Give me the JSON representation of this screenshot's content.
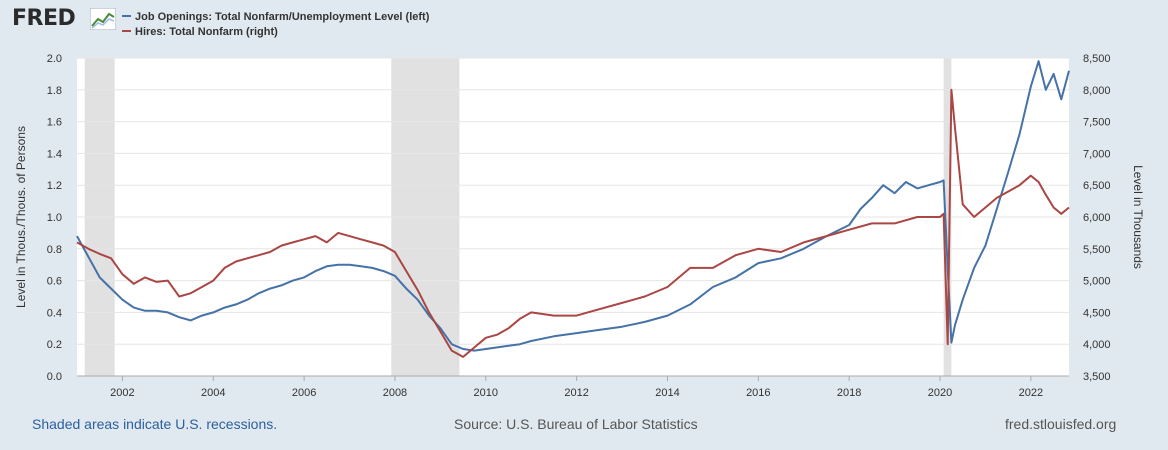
{
  "logo": {
    "text": "FRED"
  },
  "colors": {
    "series_left": "#4572a7",
    "series_right": "#aa4643",
    "recession": "#e1e1e1",
    "background": "#e1e9f0",
    "plot_bg": "#ffffff",
    "link": "#2c5f9e"
  },
  "icons": {
    "logo_graph": "line-chart-icon"
  },
  "footer": {
    "note": "Shaded areas indicate U.S. recessions.",
    "source": "Source: U.S. Bureau of Labor Statistics",
    "site": "fred.stlouisfed.org"
  },
  "chart_data": {
    "type": "line",
    "xlim": [
      2001.0,
      2022.84
    ],
    "x_ticks": [
      2002,
      2004,
      2006,
      2008,
      2010,
      2012,
      2014,
      2016,
      2018,
      2020,
      2022
    ],
    "x_tick_labels": [
      "2002",
      "2004",
      "2006",
      "2008",
      "2010",
      "2012",
      "2014",
      "2016",
      "2018",
      "2020",
      "2022"
    ],
    "y_left": {
      "label": "Level in Thous./Thous. of Persons",
      "lim": [
        0.0,
        2.0
      ],
      "ticks": [
        0.0,
        0.2,
        0.4,
        0.6,
        0.8,
        1.0,
        1.2,
        1.4,
        1.6,
        1.8,
        2.0
      ],
      "tick_labels": [
        "0.0",
        "0.2",
        "0.4",
        "0.6",
        "0.8",
        "1.0",
        "1.2",
        "1.4",
        "1.6",
        "1.8",
        "2.0"
      ]
    },
    "y_right": {
      "label": "Level in Thousands",
      "lim": [
        3500,
        8500
      ],
      "ticks": [
        3500,
        4000,
        4500,
        5000,
        5500,
        6000,
        6500,
        7000,
        7500,
        8000,
        8500
      ],
      "tick_labels": [
        "3,500",
        "4,000",
        "4,500",
        "5,000",
        "5,500",
        "6,000",
        "6,500",
        "7,000",
        "7,500",
        "8,000",
        "8,500"
      ]
    },
    "recessions": [
      [
        2001.17,
        2001.83
      ],
      [
        2007.92,
        2009.42
      ],
      [
        2020.08,
        2020.25
      ]
    ],
    "grid": "horizontal",
    "legend_placement": "top-left",
    "series": [
      {
        "name": "Job Openings: Total Nonfarm/Unemployment Level (left)",
        "axis": "left",
        "color": "#4572a7",
        "x": [
          2001.0,
          2001.25,
          2001.5,
          2001.75,
          2002.0,
          2002.25,
          2002.5,
          2002.75,
          2003.0,
          2003.25,
          2003.5,
          2003.75,
          2004.0,
          2004.25,
          2004.5,
          2004.75,
          2005.0,
          2005.25,
          2005.5,
          2005.75,
          2006.0,
          2006.25,
          2006.5,
          2006.75,
          2007.0,
          2007.25,
          2007.5,
          2007.75,
          2008.0,
          2008.25,
          2008.5,
          2008.75,
          2009.0,
          2009.25,
          2009.5,
          2009.75,
          2010.0,
          2010.25,
          2010.5,
          2010.75,
          2011.0,
          2011.5,
          2012.0,
          2012.5,
          2013.0,
          2013.5,
          2014.0,
          2014.5,
          2015.0,
          2015.5,
          2016.0,
          2016.5,
          2017.0,
          2017.5,
          2018.0,
          2018.25,
          2018.5,
          2018.75,
          2019.0,
          2019.25,
          2019.5,
          2019.75,
          2020.0,
          2020.08,
          2020.17,
          2020.25,
          2020.33,
          2020.5,
          2020.75,
          2021.0,
          2021.25,
          2021.5,
          2021.75,
          2022.0,
          2022.17,
          2022.33,
          2022.5,
          2022.67,
          2022.84
        ],
        "values": [
          0.88,
          0.75,
          0.62,
          0.55,
          0.48,
          0.43,
          0.41,
          0.41,
          0.4,
          0.37,
          0.35,
          0.38,
          0.4,
          0.43,
          0.45,
          0.48,
          0.52,
          0.55,
          0.57,
          0.6,
          0.62,
          0.66,
          0.69,
          0.7,
          0.7,
          0.69,
          0.68,
          0.66,
          0.63,
          0.55,
          0.48,
          0.38,
          0.3,
          0.2,
          0.17,
          0.16,
          0.17,
          0.18,
          0.19,
          0.2,
          0.22,
          0.25,
          0.27,
          0.29,
          0.31,
          0.34,
          0.38,
          0.45,
          0.56,
          0.62,
          0.71,
          0.74,
          0.8,
          0.88,
          0.95,
          1.05,
          1.12,
          1.2,
          1.15,
          1.22,
          1.18,
          1.2,
          1.22,
          1.23,
          0.68,
          0.21,
          0.32,
          0.48,
          0.68,
          0.82,
          1.05,
          1.28,
          1.52,
          1.82,
          1.98,
          1.8,
          1.9,
          1.74,
          1.92
        ]
      },
      {
        "name": "Hires: Total Nonfarm (right)",
        "axis": "right",
        "color": "#aa4643",
        "x": [
          2001.0,
          2001.25,
          2001.5,
          2001.75,
          2002.0,
          2002.25,
          2002.5,
          2002.75,
          2003.0,
          2003.25,
          2003.5,
          2003.75,
          2004.0,
          2004.25,
          2004.5,
          2004.75,
          2005.0,
          2005.25,
          2005.5,
          2005.75,
          2006.0,
          2006.25,
          2006.5,
          2006.75,
          2007.0,
          2007.25,
          2007.5,
          2007.75,
          2008.0,
          2008.25,
          2008.5,
          2008.75,
          2009.0,
          2009.25,
          2009.5,
          2009.75,
          2010.0,
          2010.25,
          2010.5,
          2010.75,
          2011.0,
          2011.5,
          2012.0,
          2012.5,
          2013.0,
          2013.5,
          2014.0,
          2014.5,
          2015.0,
          2015.5,
          2016.0,
          2016.5,
          2017.0,
          2017.5,
          2018.0,
          2018.5,
          2019.0,
          2019.5,
          2020.0,
          2020.08,
          2020.17,
          2020.25,
          2020.33,
          2020.5,
          2020.75,
          2021.0,
          2021.25,
          2021.5,
          2021.75,
          2022.0,
          2022.17,
          2022.33,
          2022.5,
          2022.67,
          2022.84
        ],
        "values": [
          5600,
          5500,
          5420,
          5350,
          5100,
          4950,
          5050,
          4980,
          5000,
          4750,
          4800,
          4900,
          5000,
          5200,
          5300,
          5350,
          5400,
          5450,
          5550,
          5600,
          5650,
          5700,
          5600,
          5750,
          5700,
          5650,
          5600,
          5550,
          5450,
          5150,
          4850,
          4500,
          4200,
          3900,
          3800,
          3950,
          4100,
          4150,
          4250,
          4400,
          4500,
          4450,
          4450,
          4550,
          4650,
          4750,
          4900,
          5200,
          5200,
          5400,
          5500,
          5450,
          5600,
          5700,
          5800,
          5900,
          5900,
          6000,
          6000,
          6050,
          4000,
          8000,
          7400,
          6200,
          6000,
          6150,
          6300,
          6400,
          6500,
          6650,
          6550,
          6350,
          6150,
          6050,
          6150
        ]
      }
    ]
  }
}
